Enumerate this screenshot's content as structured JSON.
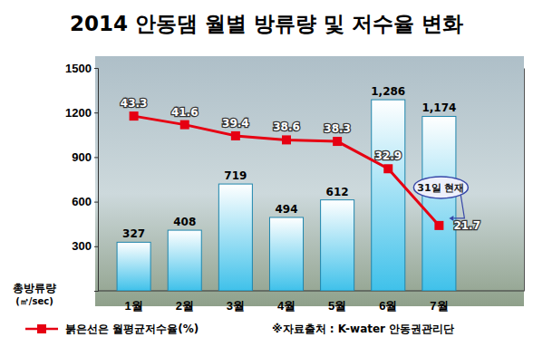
{
  "chart_data": {
    "type": "bar",
    "title": "2014 안동댐 월별 방류량 및 저수율 변화",
    "y_label": [
      "총방류량",
      "(㎥/sec)"
    ],
    "source": "※자료출처 : K-water 안동권관리단",
    "annotation": "31일 현재",
    "categories": [
      "1월",
      "2월",
      "3월",
      "4월",
      "5월",
      "6월",
      "7월"
    ],
    "series": [
      {
        "type": "bar",
        "color": "#3fc1ea",
        "values": [
          327,
          408,
          719,
          494,
          612,
          1286,
          1174
        ],
        "value_labels": [
          "327",
          "408",
          "719",
          "494",
          "612",
          "1,286",
          "1,174"
        ]
      },
      {
        "name": "붉은선은 월평균저수율(%)",
        "type": "line",
        "axis": "y2",
        "color": "#e60012",
        "marker": "square",
        "values": [
          43.3,
          41.6,
          39.4,
          38.6,
          38.3,
          32.9,
          21.7
        ]
      }
    ],
    "ylim": [
      0,
      1500
    ],
    "yticks": [
      300,
      600,
      900,
      1200,
      1500
    ],
    "y2lim": [
      8.8,
      52.8
    ],
    "y2ticks": [],
    "data_labels": true,
    "grid": false,
    "legend": "bottom"
  }
}
